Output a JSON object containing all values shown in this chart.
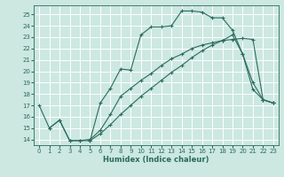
{
  "xlabel": "Humidex (Indice chaleur)",
  "bg_color": "#cce8e0",
  "grid_color": "#ffffff",
  "line_color": "#2a6b5e",
  "xlim": [
    -0.5,
    23.5
  ],
  "ylim": [
    13.5,
    25.8
  ],
  "xticks": [
    0,
    1,
    2,
    3,
    4,
    5,
    6,
    7,
    8,
    9,
    10,
    11,
    12,
    13,
    14,
    15,
    16,
    17,
    18,
    19,
    20,
    21,
    22,
    23
  ],
  "yticks": [
    14,
    15,
    16,
    17,
    18,
    19,
    20,
    21,
    22,
    23,
    24,
    25
  ],
  "line1_x": [
    0,
    1,
    2,
    3,
    4,
    5,
    6,
    7,
    8,
    9,
    10,
    11,
    12,
    13,
    14,
    15,
    16,
    17,
    18,
    19,
    20,
    21,
    22,
    23
  ],
  "line1_y": [
    17.0,
    15.0,
    15.7,
    13.9,
    13.9,
    13.9,
    17.2,
    18.5,
    20.2,
    20.1,
    23.2,
    23.9,
    23.9,
    24.0,
    25.3,
    25.3,
    25.2,
    24.7,
    24.7,
    23.6,
    21.5,
    18.4,
    17.5,
    17.2
  ],
  "line2_x": [
    5,
    6,
    7,
    8,
    9,
    10,
    11,
    12,
    13,
    14,
    15,
    16,
    17,
    18,
    19,
    20,
    21,
    22,
    23
  ],
  "line2_y": [
    13.9,
    14.5,
    15.3,
    16.2,
    17.0,
    17.8,
    18.5,
    19.2,
    19.9,
    20.5,
    21.2,
    21.8,
    22.3,
    22.7,
    23.2,
    21.5,
    19.0,
    17.5,
    17.2
  ],
  "line3_x": [
    1,
    2,
    3,
    4,
    5,
    6,
    7,
    8,
    9,
    10,
    11,
    12,
    13,
    14,
    15,
    16,
    17,
    18,
    19,
    20,
    21,
    22,
    23
  ],
  "line3_y": [
    15.0,
    15.7,
    13.9,
    13.9,
    14.0,
    14.8,
    16.2,
    17.8,
    18.5,
    19.2,
    19.8,
    20.5,
    21.1,
    21.5,
    22.0,
    22.3,
    22.5,
    22.7,
    22.8,
    22.9,
    22.8,
    17.5,
    17.2
  ]
}
